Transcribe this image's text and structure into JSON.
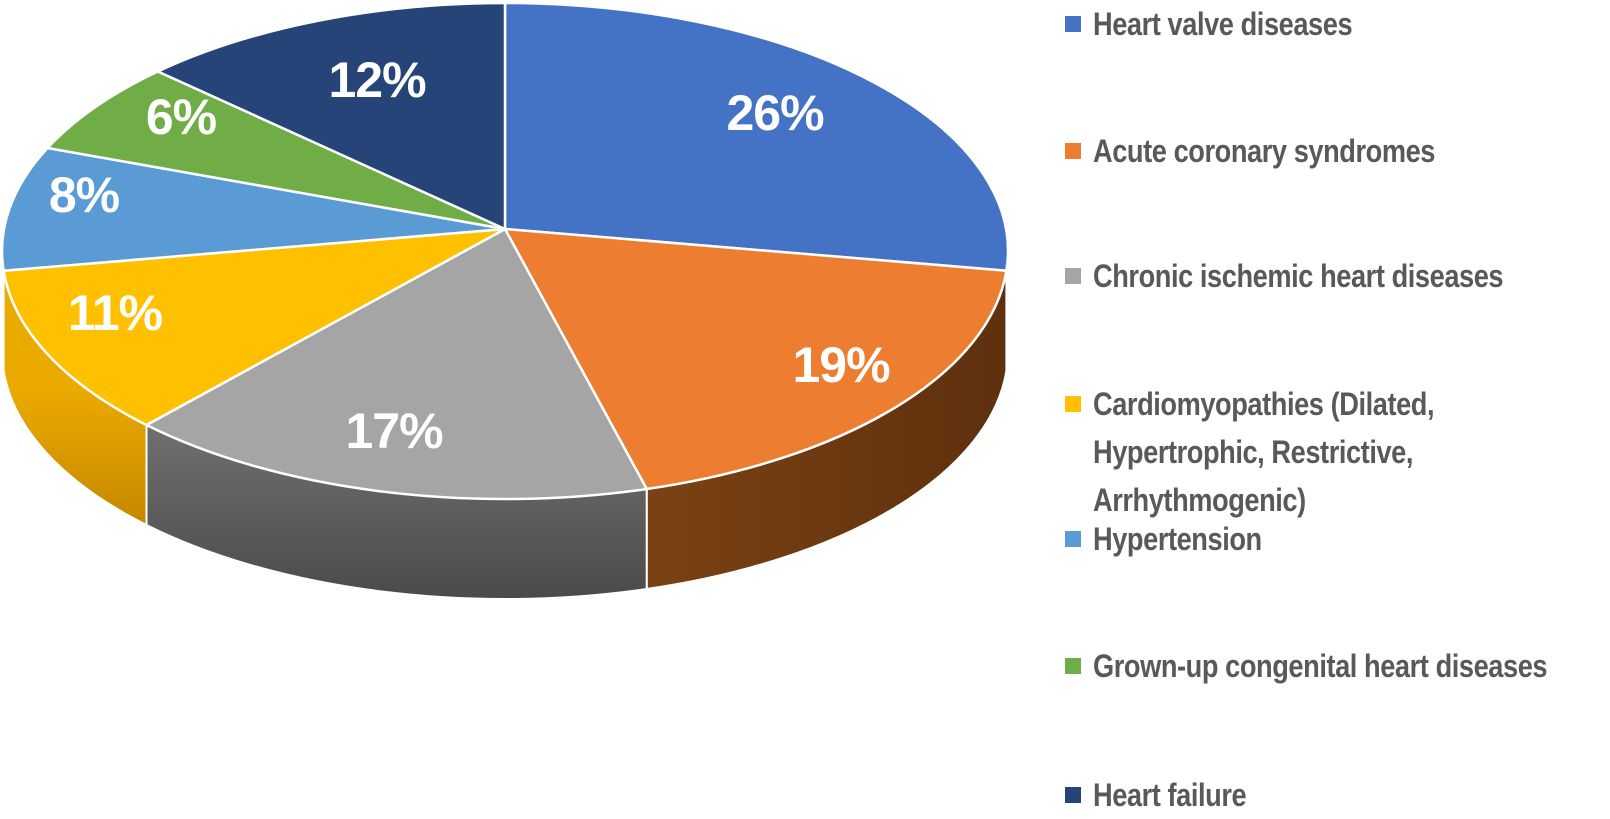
{
  "chart_data": {
    "type": "pie",
    "style": "3d-pie",
    "title": "",
    "unit": "%",
    "legend_position": "right",
    "series": [
      {
        "label": "Heart valve diseases",
        "value": 26,
        "color": "#4472C4"
      },
      {
        "label": "Acute coronary syndromes",
        "value": 19,
        "color": "#ED7D31"
      },
      {
        "label": "Chronic ischemic heart diseases",
        "value": 17,
        "color": "#A5A5A5"
      },
      {
        "label": "Cardiomyopathies (Dilated, Hypertrophic, Restrictive, Arrhythmogenic)",
        "value": 11,
        "color": "#FFC000"
      },
      {
        "label": "Hypertension",
        "value": 8,
        "color": "#5B9BD5"
      },
      {
        "label": "Grown-up congenital heart diseases",
        "value": 6,
        "color": "#70AD47"
      },
      {
        "label": "Heart failure",
        "value": 12,
        "color": "#264478"
      }
    ],
    "data_labels": [
      "26%",
      "19%",
      "17%",
      "11%",
      "8%",
      "6%",
      "12%"
    ]
  },
  "styles": {
    "background": "#FFFFFF",
    "data_label_color": "#FFFFFF",
    "legend_text_color": "#595959",
    "slice_border_color": "#FFFFFF"
  }
}
